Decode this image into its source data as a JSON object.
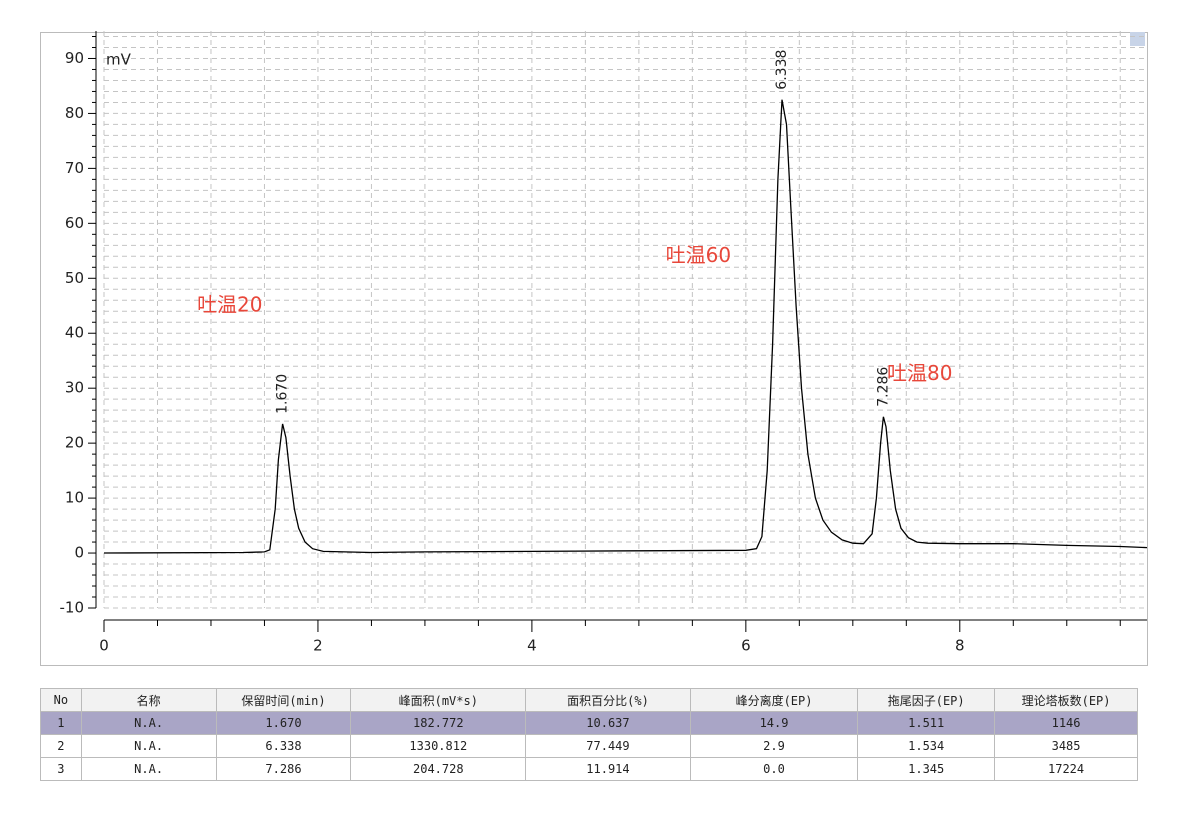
{
  "chart_data": {
    "type": "line",
    "y_unit": "mV",
    "color": "#000000",
    "x": [
      0,
      1.3,
      1.5,
      1.55,
      1.6,
      1.63,
      1.67,
      1.7,
      1.74,
      1.78,
      1.82,
      1.88,
      1.95,
      2.05,
      2.5,
      3,
      4,
      5,
      6,
      6.1,
      6.15,
      6.2,
      6.25,
      6.3,
      6.338,
      6.38,
      6.42,
      6.47,
      6.52,
      6.58,
      6.65,
      6.72,
      6.8,
      6.9,
      7.0,
      7.1,
      7.18,
      7.22,
      7.26,
      7.286,
      7.31,
      7.35,
      7.4,
      7.45,
      7.52,
      7.6,
      7.7,
      8.0,
      8.5,
      9.0,
      9.5,
      9.75
    ],
    "values": [
      0,
      0.1,
      0.2,
      0.6,
      8,
      17,
      23.5,
      21,
      14,
      8,
      4.5,
      2,
      0.8,
      0.3,
      0.1,
      0.2,
      0.3,
      0.4,
      0.5,
      0.8,
      3,
      15,
      38,
      68,
      82.5,
      78,
      63,
      45,
      30,
      18,
      10,
      6,
      3.8,
      2.4,
      1.8,
      1.7,
      3.5,
      10,
      20,
      24.8,
      23,
      15,
      8,
      4.5,
      2.8,
      2,
      1.8,
      1.7,
      1.7,
      1.4,
      1.2,
      1
    ],
    "xlim": [
      0,
      9.75
    ],
    "ylim": [
      -10,
      95
    ],
    "xticks": [
      0,
      2,
      4,
      6,
      8
    ],
    "yticks": [
      -10,
      0,
      10,
      20,
      30,
      40,
      50,
      60,
      70,
      80,
      90
    ],
    "xminor": [
      0.5,
      1,
      1.5,
      2.5,
      3,
      3.5,
      4.5,
      5,
      5.5,
      6.5,
      7,
      7.5,
      8.5,
      9,
      9.5
    ],
    "yminor": [
      -8,
      -6,
      -4,
      -2,
      2,
      4,
      6,
      8,
      12,
      14,
      16,
      18,
      22,
      24,
      26,
      28,
      32,
      34,
      36,
      38,
      42,
      44,
      46,
      48,
      52,
      54,
      56,
      58,
      62,
      64,
      66,
      68,
      72,
      74,
      76,
      78,
      82,
      84,
      86,
      88,
      92,
      94
    ],
    "grid": true,
    "peaks": [
      {
        "x": 1.67,
        "y": 23.5,
        "label": "1.670"
      },
      {
        "x": 6.338,
        "y": 82.5,
        "label": "6.338"
      },
      {
        "x": 7.286,
        "y": 24.8,
        "label": "7.286"
      }
    ],
    "annotations": [
      {
        "text": "吐温20",
        "x": 0.87,
        "y": 45
      },
      {
        "text": "吐温60",
        "x": 5.25,
        "y": 54
      },
      {
        "text": "吐温80",
        "x": 7.32,
        "y": 32.5
      }
    ],
    "annotation_color": "#e8473a"
  },
  "table": {
    "header": [
      "No",
      "名称",
      "保留时间(min)",
      "峰面积(mV*s)",
      "面积百分比(%)",
      "峰分离度(EP)",
      "拖尾因子(EP)",
      "理论塔板数(EP)"
    ],
    "rows": [
      [
        "1",
        "N.A.",
        "1.670",
        "182.772",
        "10.637",
        "14.9",
        "1.511",
        "1146"
      ],
      [
        "2",
        "N.A.",
        "6.338",
        "1330.812",
        "77.449",
        "2.9",
        "1.534",
        "3485"
      ],
      [
        "3",
        "N.A.",
        "7.286",
        "204.728",
        "11.914",
        "0.0",
        "1.345",
        "17224"
      ]
    ]
  }
}
